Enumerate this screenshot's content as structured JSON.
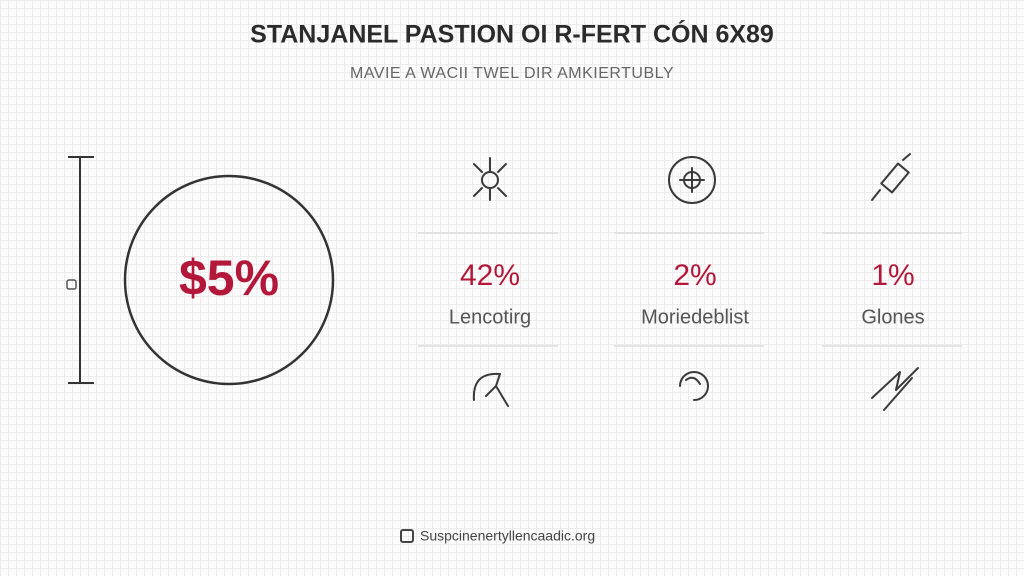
{
  "header": {
    "title": "STANJANEL PASTION OI R-FERT CÓN 6X89",
    "subtitle": "MAVIE A WACII TWEL DIR AMKIERTUBLY"
  },
  "highlight": {
    "value": "$5%"
  },
  "stats": [
    {
      "value": "42%",
      "label": "Lencotirg"
    },
    {
      "value": "2%",
      "label": "Moriedeblist"
    },
    {
      "value": "1%",
      "label": "Glones"
    }
  ],
  "footer": {
    "text": "Suspcinenertyllencaadic.org"
  }
}
